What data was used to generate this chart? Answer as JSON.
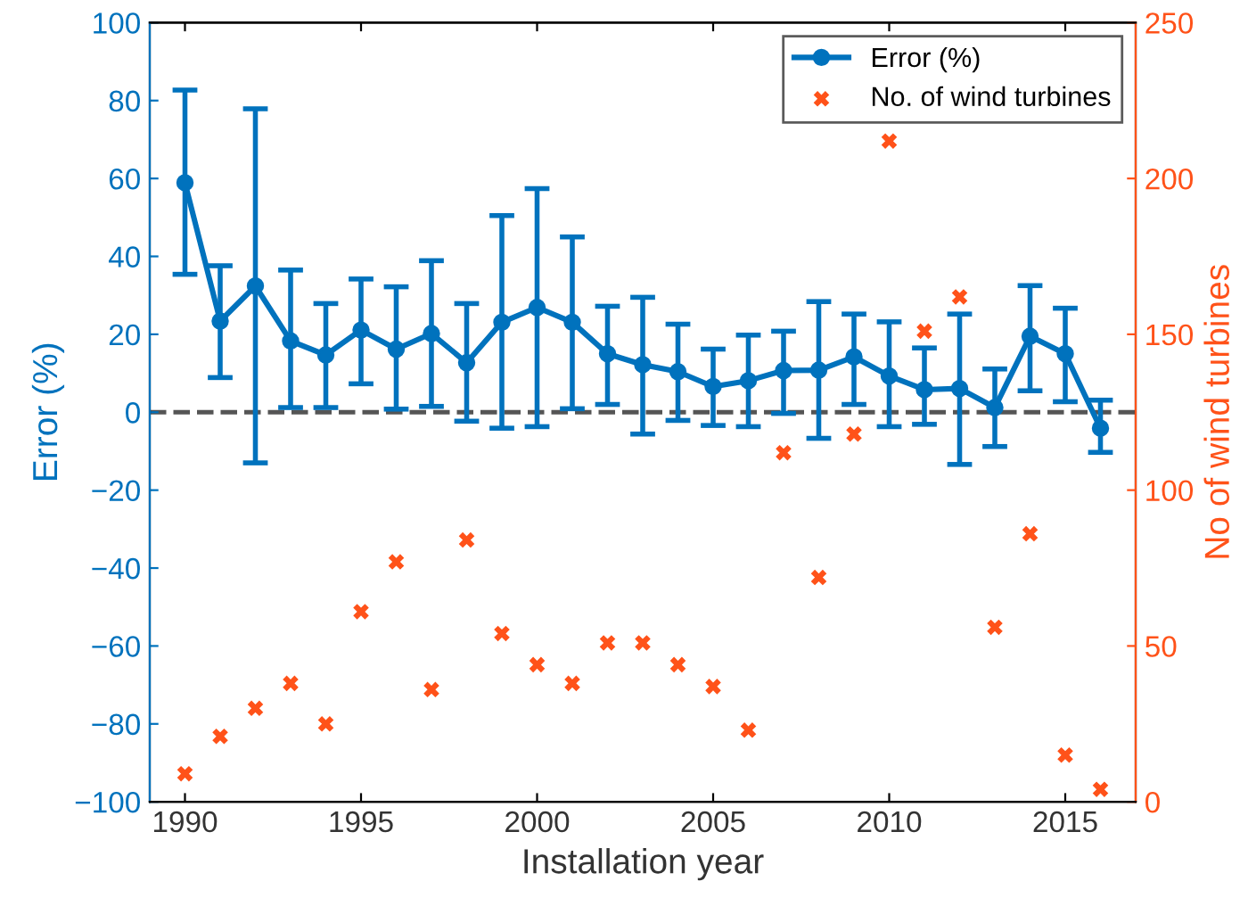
{
  "chart_data": {
    "type": "line",
    "xlabel": "Installation year",
    "ylabel": "Error (%)",
    "y2label": "No of wind turbines",
    "x": [
      1990,
      1991,
      1992,
      1993,
      1994,
      1995,
      1996,
      1997,
      1998,
      1999,
      2000,
      2001,
      2002,
      2003,
      2004,
      2005,
      2006,
      2007,
      2008,
      2009,
      2010,
      2011,
      2012,
      2013,
      2014,
      2015,
      2016
    ],
    "series": [
      {
        "name": "Error (%)",
        "color": "#0072bd",
        "marker": "circle",
        "line_style": "solid",
        "values": [
          58.9,
          23.4,
          32.4,
          18.3,
          14.7,
          21.1,
          16.2,
          20.2,
          12.7,
          23.1,
          26.9,
          23.1,
          15.0,
          12.2,
          10.4,
          6.6,
          8.1,
          10.7,
          10.8,
          14.2,
          9.3,
          5.8,
          6.1,
          1.2,
          19.5,
          15.0,
          -4.1
        ],
        "errors": [
          [
            35.4,
            82.7
          ],
          [
            8.9,
            37.6
          ],
          [
            -13.0,
            77.9
          ],
          [
            1.2,
            36.5
          ],
          [
            1.2,
            27.9
          ],
          [
            7.3,
            34.2
          ],
          [
            0.8,
            32.2
          ],
          [
            1.5,
            38.9
          ],
          [
            -2.3,
            27.9
          ],
          [
            -4.1,
            50.5
          ],
          [
            -3.7,
            57.4
          ],
          [
            0.9,
            45.0
          ],
          [
            2.0,
            27.2
          ],
          [
            -5.6,
            29.5
          ],
          [
            -2.1,
            22.6
          ],
          [
            -3.4,
            16.2
          ],
          [
            -3.7,
            19.8
          ],
          [
            -0.3,
            20.8
          ],
          [
            -6.7,
            28.4
          ],
          [
            2.0,
            25.2
          ],
          [
            -3.7,
            23.2
          ],
          [
            -3.1,
            16.5
          ],
          [
            -13.4,
            25.2
          ],
          [
            -8.8,
            11.1
          ],
          [
            5.5,
            32.5
          ],
          [
            2.7,
            26.7
          ],
          [
            -10.3,
            3.1
          ]
        ]
      },
      {
        "name": "No. of wind turbines",
        "type": "scatter",
        "axis": "y2",
        "color": "#ff5219",
        "marker": "cross",
        "values": [
          9,
          21,
          30,
          38,
          25,
          61,
          77,
          36,
          84,
          54,
          44,
          38,
          51,
          51,
          44,
          37,
          23,
          112,
          72,
          118,
          212,
          151,
          162,
          56,
          86,
          15,
          4
        ]
      }
    ],
    "xlim": [
      1989,
      2017
    ],
    "xticks": [
      1990,
      1995,
      2000,
      2005,
      2010,
      2015
    ],
    "ylim": [
      -100,
      100
    ],
    "yticks": [
      -100,
      -80,
      -60,
      -40,
      -20,
      0,
      20,
      40,
      60,
      80,
      100
    ],
    "y2lim": [
      0,
      250
    ],
    "y2ticks": [
      0,
      50,
      100,
      150,
      200,
      250
    ],
    "ref_lines": [
      {
        "axis": "y",
        "value": 0,
        "color": "#555555",
        "line_style": "dashed"
      }
    ],
    "legend": "top right",
    "grid": false
  }
}
